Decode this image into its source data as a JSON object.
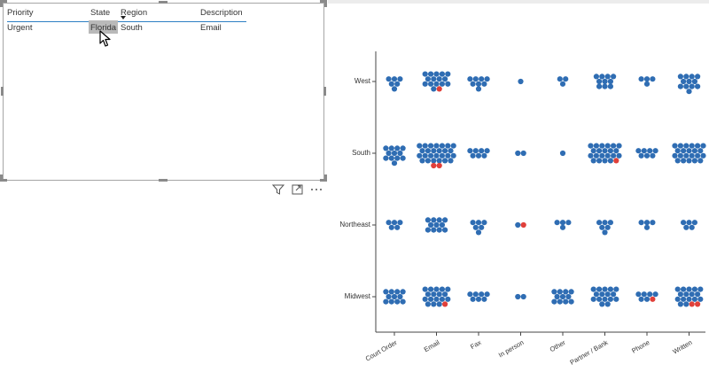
{
  "table": {
    "columns": [
      "Priority",
      "State",
      "Region",
      "Description"
    ],
    "rows": [
      [
        "Urgent",
        "Florida",
        "South",
        "Email"
      ]
    ],
    "sorted_column": "Region"
  },
  "toolbar": {
    "icons": [
      "filter-icon",
      "focus-mode-icon",
      "more-options-icon"
    ]
  },
  "chart_data": {
    "type": "scatter",
    "title": "",
    "xlabel": "",
    "ylabel": "",
    "categories_x": [
      "Court Order",
      "Email",
      "Fax",
      "In person",
      "Other",
      "Partner / Bank",
      "Phone",
      "Written"
    ],
    "categories_y": [
      "West",
      "South",
      "Northeast",
      "Midwest"
    ],
    "grid": false,
    "colors": {
      "default": "#2f6db3",
      "highlight": "#e0403a"
    },
    "cells": [
      {
        "x": "Court Order",
        "y": "West",
        "count": 6,
        "highlight": 0
      },
      {
        "x": "Email",
        "y": "West",
        "count": 16,
        "highlight": 1
      },
      {
        "x": "Fax",
        "y": "West",
        "count": 8,
        "highlight": 0
      },
      {
        "x": "In person",
        "y": "West",
        "count": 1,
        "highlight": 0
      },
      {
        "x": "Other",
        "y": "West",
        "count": 3,
        "highlight": 0
      },
      {
        "x": "Partner / Bank",
        "y": "West",
        "count": 10,
        "highlight": 0
      },
      {
        "x": "Phone",
        "y": "West",
        "count": 4,
        "highlight": 0
      },
      {
        "x": "Written",
        "y": "West",
        "count": 12,
        "highlight": 0
      },
      {
        "x": "Court Order",
        "y": "South",
        "count": 12,
        "highlight": 0
      },
      {
        "x": "Email",
        "y": "South",
        "count": 28,
        "highlight": 2
      },
      {
        "x": "Fax",
        "y": "South",
        "count": 7,
        "highlight": 0
      },
      {
        "x": "In person",
        "y": "South",
        "count": 2,
        "highlight": 0
      },
      {
        "x": "Other",
        "y": "South",
        "count": 1,
        "highlight": 0
      },
      {
        "x": "Partner / Bank",
        "y": "South",
        "count": 22,
        "highlight": 1
      },
      {
        "x": "Phone",
        "y": "South",
        "count": 7,
        "highlight": 0
      },
      {
        "x": "Written",
        "y": "South",
        "count": 22,
        "highlight": 0
      },
      {
        "x": "Court Order",
        "y": "Northeast",
        "count": 5,
        "highlight": 0
      },
      {
        "x": "Email",
        "y": "Northeast",
        "count": 11,
        "highlight": 0
      },
      {
        "x": "Fax",
        "y": "Northeast",
        "count": 6,
        "highlight": 0
      },
      {
        "x": "In person",
        "y": "Northeast",
        "count": 2,
        "highlight": 1
      },
      {
        "x": "Other",
        "y": "Northeast",
        "count": 4,
        "highlight": 0
      },
      {
        "x": "Partner / Bank",
        "y": "Northeast",
        "count": 6,
        "highlight": 0
      },
      {
        "x": "Phone",
        "y": "Northeast",
        "count": 4,
        "highlight": 0
      },
      {
        "x": "Written",
        "y": "Northeast",
        "count": 5,
        "highlight": 0
      },
      {
        "x": "Court Order",
        "y": "Midwest",
        "count": 11,
        "highlight": 0
      },
      {
        "x": "Email",
        "y": "Midwest",
        "count": 18,
        "highlight": 1
      },
      {
        "x": "Fax",
        "y": "Midwest",
        "count": 7,
        "highlight": 0
      },
      {
        "x": "In person",
        "y": "Midwest",
        "count": 2,
        "highlight": 0
      },
      {
        "x": "Other",
        "y": "Midwest",
        "count": 11,
        "highlight": 0
      },
      {
        "x": "Partner / Bank",
        "y": "Midwest",
        "count": 16,
        "highlight": 0
      },
      {
        "x": "Phone",
        "y": "Midwest",
        "count": 7,
        "highlight": 1
      },
      {
        "x": "Written",
        "y": "Midwest",
        "count": 18,
        "highlight": 2
      }
    ]
  }
}
